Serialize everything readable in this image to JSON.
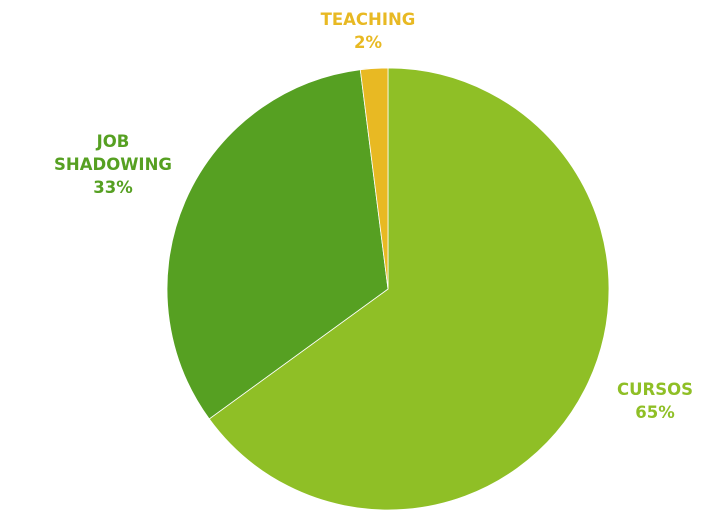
{
  "chart_data": {
    "type": "pie",
    "title": "",
    "start_angle_deg": 0,
    "direction": "clockwise",
    "slices": [
      {
        "lines": [
          "CURSOS"
        ],
        "label": "CURSOS",
        "value": 65,
        "value_label": "65%",
        "color": "#8fbf26"
      },
      {
        "lines": [
          "JOB",
          "SHADOWING"
        ],
        "label": "JOB SHADOWING",
        "value": 33,
        "value_label": "33%",
        "color": "#56a022"
      },
      {
        "lines": [
          "TEACHING"
        ],
        "label": "TEACHING",
        "value": 2,
        "value_label": "2%",
        "color": "#e8b923"
      }
    ],
    "label_colors": [
      "#8fbf26",
      "#56a022",
      "#e8b923"
    ],
    "legend": "none"
  }
}
